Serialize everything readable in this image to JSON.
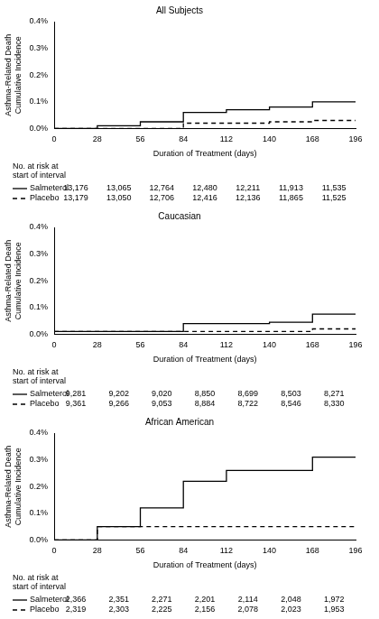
{
  "chart_data": [
    {
      "type": "step",
      "title": "All Subjects",
      "x_label": "Duration of Treatment (days)",
      "y_label": [
        "Asthma-Related Death",
        "Cumulative Incidence"
      ],
      "x": [
        0,
        28,
        56,
        84,
        112,
        140,
        168,
        196
      ],
      "series": [
        {
          "name": "Salmeterol",
          "color": "#000000",
          "line_style": "solid",
          "values": [
            0,
            0.01,
            0.025,
            0.06,
            0.07,
            0.08,
            0.1,
            0.1
          ],
          "at_risk": [
            {
              "value": 13176,
              "label": "13,176"
            },
            {
              "value": 13065,
              "label": "13,065"
            },
            {
              "value": 12764,
              "label": "12,764"
            },
            {
              "value": 12480,
              "label": "12,480"
            },
            {
              "value": 12211,
              "label": "12,211"
            },
            {
              "value": 11913,
              "label": "11,913"
            },
            {
              "value": 11535,
              "label": "11,535"
            }
          ]
        },
        {
          "name": "Placebo",
          "color": "#000000",
          "line_style": "dashed",
          "values": [
            0,
            0,
            0,
            0.02,
            0.02,
            0.025,
            0.03,
            0.03
          ],
          "at_risk": [
            {
              "value": 13179,
              "label": "13,179"
            },
            {
              "value": 13050,
              "label": "13,050"
            },
            {
              "value": 12706,
              "label": "12,706"
            },
            {
              "value": 12416,
              "label": "12,416"
            },
            {
              "value": 12136,
              "label": "12,136"
            },
            {
              "value": 11865,
              "label": "11,865"
            },
            {
              "value": 11525,
              "label": "11,525"
            }
          ]
        }
      ],
      "at_risk_title": [
        "No. at risk at",
        "start of interval"
      ],
      "xlim": [
        0,
        196
      ],
      "xticks": [
        0,
        28,
        56,
        84,
        112,
        140,
        168,
        196
      ],
      "ylim": [
        0,
        0.4
      ],
      "yticks": [
        {
          "value": 0,
          "label": "0.0%"
        },
        {
          "value": 0.1,
          "label": "0.1%"
        },
        {
          "value": 0.2,
          "label": "0.2%"
        },
        {
          "value": 0.3,
          "label": "0.3%"
        },
        {
          "value": 0.4,
          "label": "0.4%"
        }
      ],
      "grid": false
    },
    {
      "type": "step",
      "title": "Caucasian",
      "x_label": "Duration of Treatment (days)",
      "y_label": [
        "Asthma-Related Death",
        "Cumulative Incidence"
      ],
      "x": [
        0,
        28,
        56,
        84,
        112,
        140,
        168,
        196
      ],
      "series": [
        {
          "name": "Salmeterol",
          "color": "#000000",
          "line_style": "solid",
          "values": [
            0.01,
            0.01,
            0.01,
            0.04,
            0.04,
            0.045,
            0.075,
            0.075
          ],
          "at_risk": [
            {
              "value": 9281,
              "label": "9,281"
            },
            {
              "value": 9202,
              "label": "9,202"
            },
            {
              "value": 9020,
              "label": "9,020"
            },
            {
              "value": 8850,
              "label": "8,850"
            },
            {
              "value": 8699,
              "label": "8,699"
            },
            {
              "value": 8503,
              "label": "8,503"
            },
            {
              "value": 8271,
              "label": "8,271"
            }
          ]
        },
        {
          "name": "Placebo",
          "color": "#000000",
          "line_style": "dashed",
          "values": [
            0.01,
            0.01,
            0.01,
            0.01,
            0.01,
            0.01,
            0.02,
            0.02
          ],
          "at_risk": [
            {
              "value": 9361,
              "label": "9,361"
            },
            {
              "value": 9266,
              "label": "9,266"
            },
            {
              "value": 9053,
              "label": "9,053"
            },
            {
              "value": 8884,
              "label": "8,884"
            },
            {
              "value": 8722,
              "label": "8,722"
            },
            {
              "value": 8546,
              "label": "8,546"
            },
            {
              "value": 8330,
              "label": "8,330"
            }
          ]
        }
      ],
      "at_risk_title": [
        "No. at risk at",
        "start of interval"
      ],
      "xlim": [
        0,
        196
      ],
      "xticks": [
        0,
        28,
        56,
        84,
        112,
        140,
        168,
        196
      ],
      "ylim": [
        0,
        0.4
      ],
      "yticks": [
        {
          "value": 0,
          "label": "0.0%"
        },
        {
          "value": 0.1,
          "label": "0.1%"
        },
        {
          "value": 0.2,
          "label": "0.2%"
        },
        {
          "value": 0.3,
          "label": "0.3%"
        },
        {
          "value": 0.4,
          "label": "0.4%"
        }
      ],
      "grid": false
    },
    {
      "type": "step",
      "title": "African American",
      "x_label": "Duration of Treatment (days)",
      "y_label": [
        "Asthma-Related Death",
        "Cumulative Incidence"
      ],
      "x": [
        0,
        28,
        56,
        84,
        112,
        140,
        168,
        196
      ],
      "series": [
        {
          "name": "Salmeterol",
          "color": "#000000",
          "line_style": "solid",
          "values": [
            0,
            0.05,
            0.12,
            0.22,
            0.26,
            0.26,
            0.31,
            0.31
          ],
          "at_risk": [
            {
              "value": 2366,
              "label": "2,366"
            },
            {
              "value": 2351,
              "label": "2,351"
            },
            {
              "value": 2271,
              "label": "2,271"
            },
            {
              "value": 2201,
              "label": "2,201"
            },
            {
              "value": 2114,
              "label": "2,114"
            },
            {
              "value": 2048,
              "label": "2,048"
            },
            {
              "value": 1972,
              "label": "1,972"
            }
          ]
        },
        {
          "name": "Placebo",
          "color": "#000000",
          "line_style": "dashed",
          "values": [
            0,
            0.05,
            0.05,
            0.05,
            0.05,
            0.05,
            0.05,
            0.05
          ],
          "at_risk": [
            {
              "value": 2319,
              "label": "2,319"
            },
            {
              "value": 2303,
              "label": "2,303"
            },
            {
              "value": 2225,
              "label": "2,225"
            },
            {
              "value": 2156,
              "label": "2,156"
            },
            {
              "value": 2078,
              "label": "2,078"
            },
            {
              "value": 2023,
              "label": "2,023"
            },
            {
              "value": 1953,
              "label": "1,953"
            }
          ]
        }
      ],
      "at_risk_title": [
        "No. at risk at",
        "start of interval"
      ],
      "xlim": [
        0,
        196
      ],
      "xticks": [
        0,
        28,
        56,
        84,
        112,
        140,
        168,
        196
      ],
      "ylim": [
        0,
        0.4
      ],
      "yticks": [
        {
          "value": 0,
          "label": "0.0%"
        },
        {
          "value": 0.1,
          "label": "0.1%"
        },
        {
          "value": 0.2,
          "label": "0.2%"
        },
        {
          "value": 0.3,
          "label": "0.3%"
        },
        {
          "value": 0.4,
          "label": "0.4%"
        }
      ],
      "grid": false
    }
  ]
}
